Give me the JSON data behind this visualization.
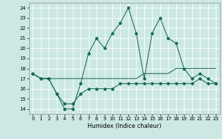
{
  "title": "",
  "xlabel": "Humidex (Indice chaleur)",
  "ylabel": "",
  "bg_color": "#cce8e4",
  "grid_color": "#ffffff",
  "line_color": "#1a6b5a",
  "xlim": [
    -0.5,
    23.5
  ],
  "ylim": [
    13.5,
    24.5
  ],
  "yticks": [
    14,
    15,
    16,
    17,
    18,
    19,
    20,
    21,
    22,
    23,
    24
  ],
  "xticks": [
    0,
    1,
    2,
    3,
    4,
    5,
    6,
    7,
    8,
    9,
    10,
    11,
    12,
    13,
    14,
    15,
    16,
    17,
    18,
    19,
    20,
    21,
    22,
    23
  ],
  "line1_x": [
    0,
    1,
    2,
    3,
    4,
    5,
    6,
    7,
    8,
    9,
    10,
    11,
    12,
    13,
    14,
    15,
    16,
    17,
    18,
    19,
    20,
    21,
    22,
    23
  ],
  "line1_y": [
    17.5,
    17.0,
    17.0,
    15.5,
    14.0,
    14.0,
    16.5,
    19.5,
    21.0,
    20.0,
    21.5,
    22.5,
    24.0,
    21.5,
    17.0,
    21.5,
    23.0,
    21.0,
    20.5,
    18.0,
    17.0,
    17.5,
    17.0,
    16.5
  ],
  "line2_x": [
    0,
    1,
    2,
    3,
    4,
    5,
    6,
    7,
    8,
    9,
    10,
    11,
    12,
    13,
    14,
    15,
    16,
    17,
    18,
    19,
    20,
    21,
    22,
    23
  ],
  "line2_y": [
    17.5,
    17.0,
    17.0,
    17.0,
    17.0,
    17.0,
    17.0,
    17.0,
    17.0,
    17.0,
    17.0,
    17.0,
    17.0,
    17.0,
    17.5,
    17.5,
    17.5,
    17.5,
    18.0,
    18.0,
    18.0,
    18.0,
    18.0,
    18.0
  ],
  "line3_x": [
    0,
    1,
    2,
    3,
    4,
    5,
    6,
    7,
    8,
    9,
    10,
    11,
    12,
    13,
    14,
    15,
    16,
    17,
    18,
    19,
    20,
    21,
    22,
    23
  ],
  "line3_y": [
    17.5,
    17.0,
    17.0,
    15.5,
    14.5,
    14.5,
    15.5,
    16.0,
    16.0,
    16.0,
    16.0,
    16.5,
    16.5,
    16.5,
    16.5,
    16.5,
    16.5,
    16.5,
    16.5,
    16.5,
    16.5,
    17.0,
    16.5,
    16.5
  ]
}
